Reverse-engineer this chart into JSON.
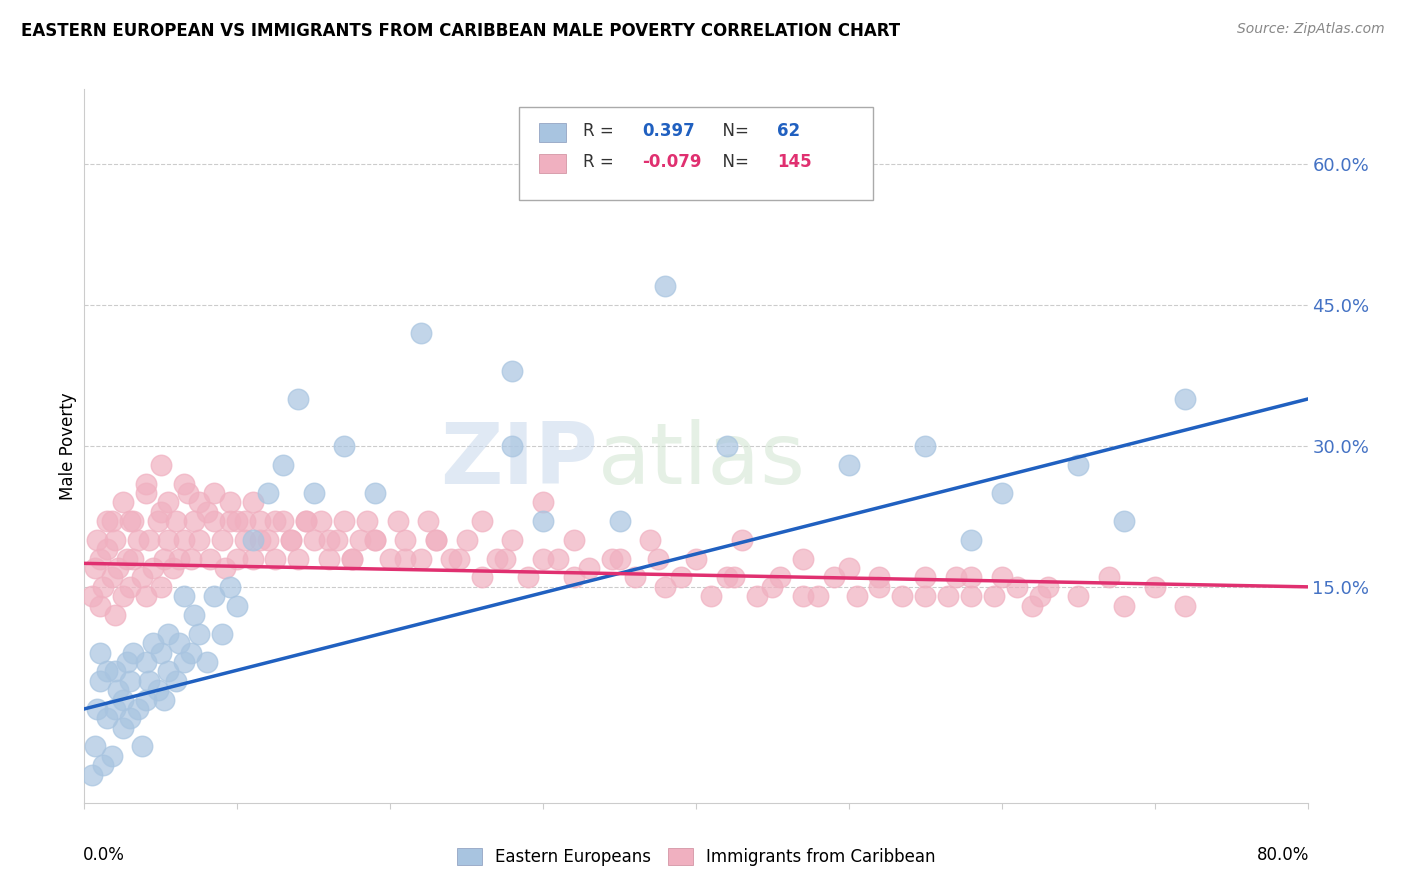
{
  "title": "EASTERN EUROPEAN VS IMMIGRANTS FROM CARIBBEAN MALE POVERTY CORRELATION CHART",
  "source": "Source: ZipAtlas.com",
  "ylabel": "Male Poverty",
  "right_yticks": [
    "60.0%",
    "45.0%",
    "30.0%",
    "15.0%"
  ],
  "right_ytick_vals": [
    0.6,
    0.45,
    0.3,
    0.15
  ],
  "xlim": [
    0.0,
    0.8
  ],
  "ylim": [
    -0.08,
    0.68
  ],
  "blue_scatter_color": "#a8c4e0",
  "pink_scatter_color": "#f0b0c0",
  "blue_line_color": "#2060c0",
  "pink_line_color": "#e03070",
  "watermark_text": "ZIP",
  "watermark_text2": "atlas",
  "blue_label": "Eastern Europeans",
  "pink_label": "Immigrants from Caribbean",
  "blue_R": "0.397",
  "blue_N": "62",
  "pink_R": "-0.079",
  "pink_N": "145",
  "blue_points_x": [
    0.005,
    0.007,
    0.008,
    0.01,
    0.01,
    0.012,
    0.015,
    0.015,
    0.018,
    0.02,
    0.02,
    0.022,
    0.025,
    0.025,
    0.028,
    0.03,
    0.03,
    0.032,
    0.035,
    0.038,
    0.04,
    0.04,
    0.042,
    0.045,
    0.048,
    0.05,
    0.052,
    0.055,
    0.055,
    0.06,
    0.062,
    0.065,
    0.065,
    0.07,
    0.072,
    0.075,
    0.08,
    0.085,
    0.09,
    0.095,
    0.1,
    0.11,
    0.12,
    0.13,
    0.14,
    0.15,
    0.17,
    0.19,
    0.22,
    0.28,
    0.28,
    0.3,
    0.35,
    0.38,
    0.42,
    0.5,
    0.55,
    0.58,
    0.6,
    0.65,
    0.68,
    0.72
  ],
  "blue_points_y": [
    -0.05,
    -0.02,
    0.02,
    0.05,
    0.08,
    -0.04,
    0.01,
    0.06,
    -0.03,
    0.02,
    0.06,
    0.04,
    0.0,
    0.03,
    0.07,
    0.01,
    0.05,
    0.08,
    0.02,
    -0.02,
    0.03,
    0.07,
    0.05,
    0.09,
    0.04,
    0.08,
    0.03,
    0.06,
    0.1,
    0.05,
    0.09,
    0.07,
    0.14,
    0.08,
    0.12,
    0.1,
    0.07,
    0.14,
    0.1,
    0.15,
    0.13,
    0.2,
    0.25,
    0.28,
    0.35,
    0.25,
    0.3,
    0.25,
    0.42,
    0.3,
    0.38,
    0.22,
    0.22,
    0.47,
    0.3,
    0.28,
    0.3,
    0.2,
    0.25,
    0.28,
    0.22,
    0.35
  ],
  "pink_points_x": [
    0.005,
    0.007,
    0.008,
    0.01,
    0.01,
    0.012,
    0.015,
    0.015,
    0.018,
    0.02,
    0.02,
    0.022,
    0.025,
    0.028,
    0.03,
    0.03,
    0.032,
    0.035,
    0.038,
    0.04,
    0.04,
    0.042,
    0.045,
    0.048,
    0.05,
    0.05,
    0.052,
    0.055,
    0.058,
    0.06,
    0.062,
    0.065,
    0.068,
    0.07,
    0.072,
    0.075,
    0.08,
    0.082,
    0.085,
    0.09,
    0.092,
    0.095,
    0.1,
    0.1,
    0.105,
    0.11,
    0.11,
    0.115,
    0.12,
    0.125,
    0.13,
    0.135,
    0.14,
    0.145,
    0.15,
    0.155,
    0.16,
    0.165,
    0.17,
    0.175,
    0.18,
    0.185,
    0.19,
    0.2,
    0.205,
    0.21,
    0.22,
    0.225,
    0.23,
    0.24,
    0.25,
    0.26,
    0.27,
    0.28,
    0.3,
    0.3,
    0.32,
    0.33,
    0.35,
    0.37,
    0.38,
    0.4,
    0.42,
    0.43,
    0.45,
    0.47,
    0.48,
    0.5,
    0.52,
    0.55,
    0.57,
    0.58,
    0.6,
    0.62,
    0.63,
    0.65,
    0.67,
    0.68,
    0.7,
    0.72,
    0.018,
    0.025,
    0.032,
    0.04,
    0.05,
    0.055,
    0.065,
    0.075,
    0.085,
    0.095,
    0.105,
    0.115,
    0.125,
    0.135,
    0.145,
    0.16,
    0.175,
    0.19,
    0.21,
    0.23,
    0.245,
    0.26,
    0.275,
    0.29,
    0.31,
    0.32,
    0.345,
    0.36,
    0.375,
    0.39,
    0.41,
    0.425,
    0.44,
    0.455,
    0.47,
    0.49,
    0.505,
    0.52,
    0.535,
    0.55,
    0.565,
    0.58,
    0.595,
    0.61,
    0.625
  ],
  "pink_points_y": [
    0.14,
    0.17,
    0.2,
    0.13,
    0.18,
    0.15,
    0.19,
    0.22,
    0.16,
    0.12,
    0.2,
    0.17,
    0.14,
    0.18,
    0.15,
    0.22,
    0.18,
    0.2,
    0.16,
    0.14,
    0.25,
    0.2,
    0.17,
    0.22,
    0.15,
    0.23,
    0.18,
    0.2,
    0.17,
    0.22,
    0.18,
    0.2,
    0.25,
    0.18,
    0.22,
    0.2,
    0.23,
    0.18,
    0.25,
    0.2,
    0.17,
    0.22,
    0.18,
    0.22,
    0.2,
    0.24,
    0.18,
    0.22,
    0.2,
    0.18,
    0.22,
    0.2,
    0.18,
    0.22,
    0.2,
    0.22,
    0.18,
    0.2,
    0.22,
    0.18,
    0.2,
    0.22,
    0.2,
    0.18,
    0.22,
    0.2,
    0.18,
    0.22,
    0.2,
    0.18,
    0.2,
    0.22,
    0.18,
    0.2,
    0.18,
    0.24,
    0.2,
    0.17,
    0.18,
    0.2,
    0.15,
    0.18,
    0.16,
    0.2,
    0.15,
    0.18,
    0.14,
    0.17,
    0.15,
    0.14,
    0.16,
    0.14,
    0.16,
    0.13,
    0.15,
    0.14,
    0.16,
    0.13,
    0.15,
    0.13,
    0.22,
    0.24,
    0.22,
    0.26,
    0.28,
    0.24,
    0.26,
    0.24,
    0.22,
    0.24,
    0.22,
    0.2,
    0.22,
    0.2,
    0.22,
    0.2,
    0.18,
    0.2,
    0.18,
    0.2,
    0.18,
    0.16,
    0.18,
    0.16,
    0.18,
    0.16,
    0.18,
    0.16,
    0.18,
    0.16,
    0.14,
    0.16,
    0.14,
    0.16,
    0.14,
    0.16,
    0.14,
    0.16,
    0.14,
    0.16,
    0.14,
    0.16,
    0.14,
    0.15,
    0.14
  ]
}
